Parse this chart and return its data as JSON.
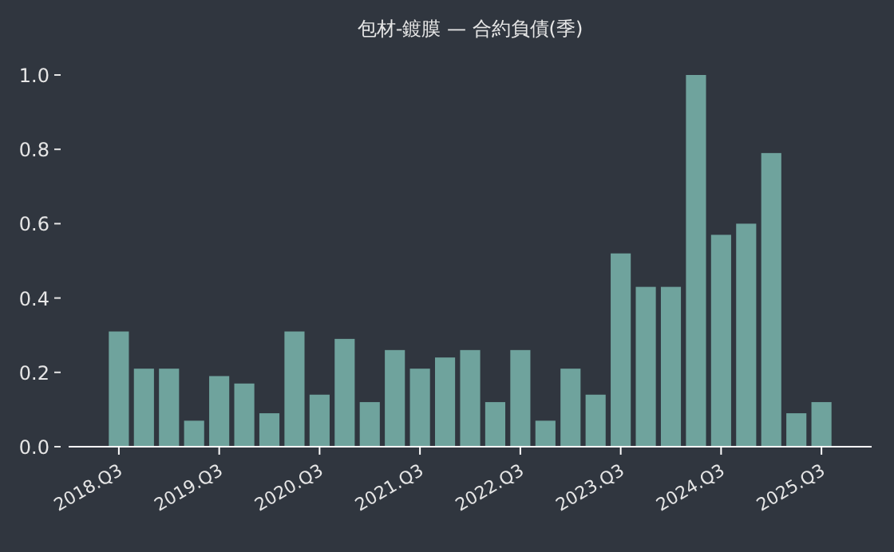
{
  "chart_data": {
    "type": "bar",
    "title": "包材-鍍膜 — 合約負債(季)",
    "categories": [
      "2018.Q3",
      null,
      null,
      null,
      "2019.Q3",
      null,
      null,
      null,
      "2020.Q3",
      null,
      null,
      null,
      "2021.Q3",
      null,
      null,
      null,
      "2022.Q3",
      null,
      null,
      null,
      "2023.Q3",
      null,
      null,
      null,
      "2024.Q3",
      null,
      null,
      null,
      "2025.Q3"
    ],
    "values": [
      0.31,
      0.21,
      0.21,
      0.07,
      0.19,
      0.17,
      0.09,
      0.31,
      0.14,
      0.29,
      0.12,
      0.26,
      0.21,
      0.24,
      0.26,
      0.12,
      0.26,
      0.07,
      0.21,
      0.14,
      0.52,
      0.43,
      0.43,
      1.0,
      0.57,
      0.6,
      0.79,
      0.09,
      0.12
    ],
    "color": "#6fa39d",
    "ylim": [
      0,
      1.0
    ],
    "yticks": [
      {
        "value": 0,
        "label": "0.0"
      },
      {
        "value": 0.2,
        "label": "0.2"
      },
      {
        "value": 0.4,
        "label": "0.4"
      },
      {
        "value": 0.6,
        "label": "0.6"
      },
      {
        "value": 0.8,
        "label": "0.8"
      },
      {
        "value": 1,
        "label": "1.0"
      }
    ],
    "grid": false
  }
}
